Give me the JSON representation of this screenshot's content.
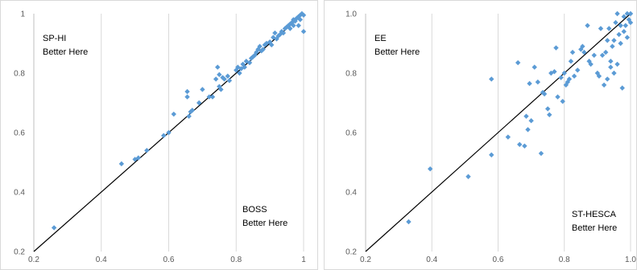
{
  "chart_data": [
    {
      "type": "scatter",
      "xlim": [
        0.2,
        1.0
      ],
      "ylim": [
        0.2,
        1.0
      ],
      "x_ticks": [
        "0.2",
        "0.4",
        "0.6",
        "0.8",
        "1"
      ],
      "y_ticks": [
        "0.2",
        "0.4",
        "0.6",
        "0.8",
        "1"
      ],
      "grid": "vertical",
      "marker_color": "#5b9bd5",
      "reference_line": {
        "from": [
          0.2,
          0.2
        ],
        "to": [
          1.0,
          1.0
        ],
        "color": "#000000"
      },
      "annotations": {
        "top_left": [
          "SP-HI",
          "Better Here"
        ],
        "bottom_right": [
          "BOSS",
          "Better Here"
        ]
      },
      "points": [
        [
          0.26,
          0.28
        ],
        [
          0.46,
          0.495
        ],
        [
          0.5,
          0.51
        ],
        [
          0.51,
          0.515
        ],
        [
          0.535,
          0.54
        ],
        [
          0.585,
          0.59
        ],
        [
          0.6,
          0.6
        ],
        [
          0.615,
          0.662
        ],
        [
          0.655,
          0.738
        ],
        [
          0.655,
          0.72
        ],
        [
          0.66,
          0.655
        ],
        [
          0.665,
          0.67
        ],
        [
          0.67,
          0.675
        ],
        [
          0.69,
          0.7
        ],
        [
          0.7,
          0.745
        ],
        [
          0.72,
          0.72
        ],
        [
          0.73,
          0.72
        ],
        [
          0.74,
          0.78
        ],
        [
          0.745,
          0.82
        ],
        [
          0.75,
          0.795
        ],
        [
          0.75,
          0.755
        ],
        [
          0.755,
          0.745
        ],
        [
          0.76,
          0.785
        ],
        [
          0.765,
          0.78
        ],
        [
          0.775,
          0.79
        ],
        [
          0.78,
          0.775
        ],
        [
          0.8,
          0.81
        ],
        [
          0.805,
          0.82
        ],
        [
          0.81,
          0.8
        ],
        [
          0.815,
          0.815
        ],
        [
          0.82,
          0.83
        ],
        [
          0.825,
          0.82
        ],
        [
          0.83,
          0.84
        ],
        [
          0.84,
          0.835
        ],
        [
          0.845,
          0.85
        ],
        [
          0.85,
          0.855
        ],
        [
          0.855,
          0.86
        ],
        [
          0.86,
          0.87
        ],
        [
          0.865,
          0.88
        ],
        [
          0.87,
          0.89
        ],
        [
          0.875,
          0.875
        ],
        [
          0.88,
          0.88
        ],
        [
          0.885,
          0.895
        ],
        [
          0.89,
          0.9
        ],
        [
          0.9,
          0.905
        ],
        [
          0.905,
          0.895
        ],
        [
          0.91,
          0.92
        ],
        [
          0.915,
          0.935
        ],
        [
          0.92,
          0.915
        ],
        [
          0.925,
          0.925
        ],
        [
          0.93,
          0.93
        ],
        [
          0.935,
          0.94
        ],
        [
          0.94,
          0.935
        ],
        [
          0.945,
          0.95
        ],
        [
          0.95,
          0.955
        ],
        [
          0.955,
          0.96
        ],
        [
          0.96,
          0.965
        ],
        [
          0.965,
          0.97
        ],
        [
          0.97,
          0.98
        ],
        [
          0.975,
          0.975
        ],
        [
          0.98,
          0.985
        ],
        [
          0.985,
          0.99
        ],
        [
          0.99,
          0.995
        ],
        [
          0.995,
          1.0
        ],
        [
          1.0,
          0.995
        ],
        [
          0.985,
          0.96
        ],
        [
          0.99,
          0.98
        ],
        [
          1.0,
          0.94
        ],
        [
          0.97,
          0.96
        ],
        [
          0.96,
          0.95
        ]
      ]
    },
    {
      "type": "scatter",
      "xlim": [
        0.2,
        1.0
      ],
      "ylim": [
        0.2,
        1.0
      ],
      "x_ticks": [
        "0.2",
        "0.4",
        "0.6",
        "0.8",
        "1.0"
      ],
      "y_ticks": [
        "0.2",
        "0.4",
        "0.6",
        "0.8",
        "1.0"
      ],
      "grid": "vertical",
      "marker_color": "#5b9bd5",
      "reference_line": {
        "from": [
          0.2,
          0.2
        ],
        "to": [
          1.0,
          1.0
        ],
        "color": "#000000"
      },
      "annotations": {
        "top_left": [
          "EE",
          "Better Here"
        ],
        "bottom_right": [
          "ST-HESCA",
          "Better Here"
        ]
      },
      "points": [
        [
          0.33,
          0.3
        ],
        [
          0.395,
          0.478
        ],
        [
          0.51,
          0.452
        ],
        [
          0.58,
          0.525
        ],
        [
          0.58,
          0.78
        ],
        [
          0.63,
          0.585
        ],
        [
          0.66,
          0.835
        ],
        [
          0.665,
          0.56
        ],
        [
          0.68,
          0.555
        ],
        [
          0.685,
          0.655
        ],
        [
          0.69,
          0.61
        ],
        [
          0.695,
          0.765
        ],
        [
          0.7,
          0.64
        ],
        [
          0.71,
          0.82
        ],
        [
          0.72,
          0.77
        ],
        [
          0.73,
          0.53
        ],
        [
          0.735,
          0.735
        ],
        [
          0.74,
          0.73
        ],
        [
          0.75,
          0.68
        ],
        [
          0.755,
          0.66
        ],
        [
          0.76,
          0.8
        ],
        [
          0.77,
          0.805
        ],
        [
          0.775,
          0.885
        ],
        [
          0.78,
          0.72
        ],
        [
          0.79,
          0.785
        ],
        [
          0.795,
          0.705
        ],
        [
          0.8,
          0.8
        ],
        [
          0.805,
          0.76
        ],
        [
          0.81,
          0.77
        ],
        [
          0.815,
          0.78
        ],
        [
          0.82,
          0.84
        ],
        [
          0.825,
          0.87
        ],
        [
          0.83,
          0.79
        ],
        [
          0.84,
          0.81
        ],
        [
          0.85,
          0.88
        ],
        [
          0.855,
          0.89
        ],
        [
          0.86,
          0.87
        ],
        [
          0.87,
          0.96
        ],
        [
          0.875,
          0.84
        ],
        [
          0.88,
          0.83
        ],
        [
          0.89,
          0.86
        ],
        [
          0.9,
          0.8
        ],
        [
          0.905,
          0.79
        ],
        [
          0.91,
          0.95
        ],
        [
          0.915,
          0.86
        ],
        [
          0.92,
          0.76
        ],
        [
          0.925,
          0.87
        ],
        [
          0.93,
          0.91
        ],
        [
          0.935,
          0.95
        ],
        [
          0.94,
          0.82
        ],
        [
          0.945,
          0.89
        ],
        [
          0.95,
          0.91
        ],
        [
          0.955,
          0.97
        ],
        [
          0.96,
          1.0
        ],
        [
          0.965,
          0.93
        ],
        [
          0.97,
          0.96
        ],
        [
          0.975,
          0.75
        ],
        [
          0.98,
          0.99
        ],
        [
          0.985,
          0.96
        ],
        [
          0.99,
          1.0
        ],
        [
          0.995,
          0.98
        ],
        [
          1.0,
          1.0
        ],
        [
          1.0,
          0.97
        ],
        [
          0.96,
          0.83
        ],
        [
          0.95,
          0.8
        ],
        [
          0.94,
          0.84
        ],
        [
          0.97,
          0.9
        ],
        [
          0.98,
          0.94
        ],
        [
          0.99,
          0.92
        ],
        [
          0.93,
          0.78
        ]
      ]
    }
  ]
}
